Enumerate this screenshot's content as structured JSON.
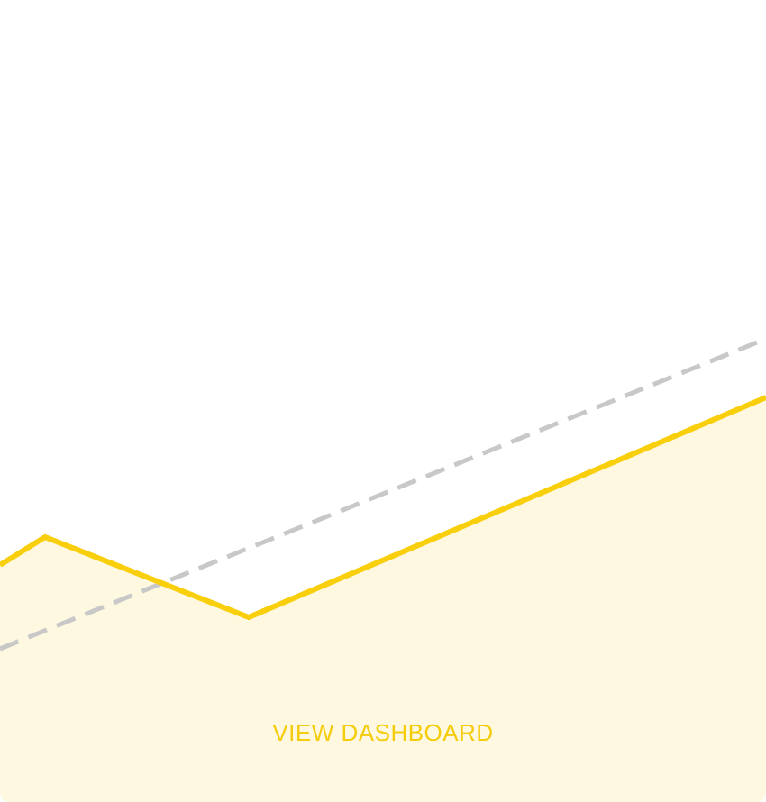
{
  "button": {
    "label": "VIEW DASHBOARD"
  }
}
